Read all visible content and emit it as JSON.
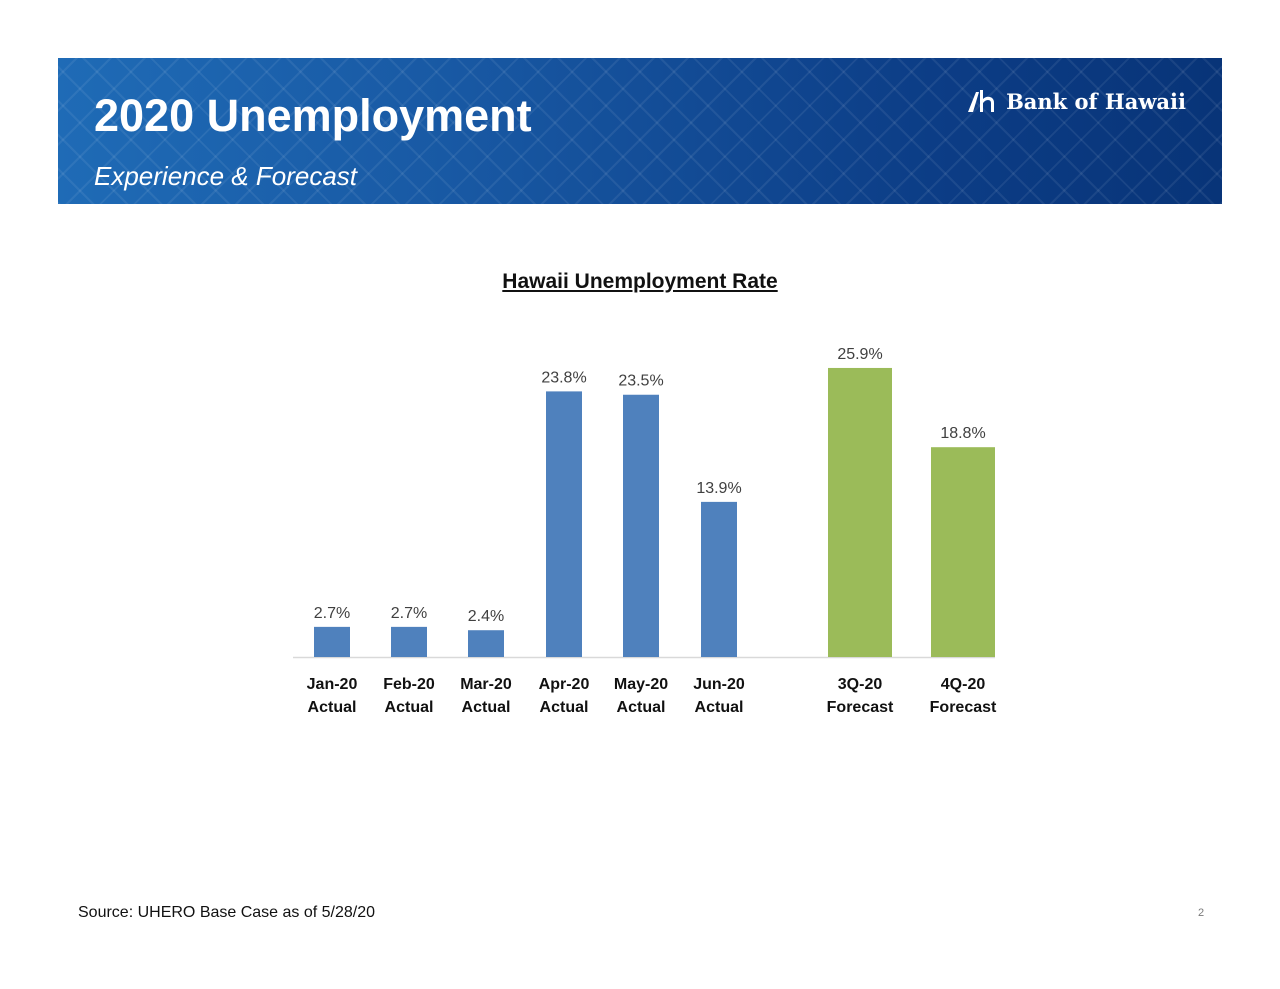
{
  "header": {
    "title": "2020 Unemployment",
    "subtitle": "Experience & Forecast",
    "logo_text": "Bank of Hawaii",
    "logo_icon": "bank-of-hawaii-logo-mark-icon",
    "banner_color": "#1858a3"
  },
  "footer": {
    "source": "Source: UHERO Base Case as of 5/28/20",
    "page_number": "2"
  },
  "chart_data": {
    "type": "bar",
    "title": "Hawaii Unemployment Rate",
    "xlabel": "",
    "ylabel": "",
    "ylim": [
      0,
      30
    ],
    "grid": false,
    "categories": [
      {
        "line1": "Jan-20",
        "line2": "Actual"
      },
      {
        "line1": "Feb-20",
        "line2": "Actual"
      },
      {
        "line1": "Mar-20",
        "line2": "Actual"
      },
      {
        "line1": "Apr-20",
        "line2": "Actual"
      },
      {
        "line1": "May-20",
        "line2": "Actual"
      },
      {
        "line1": "Jun-20",
        "line2": "Actual"
      },
      {
        "line1": "3Q-20",
        "line2": "Forecast"
      },
      {
        "line1": "4Q-20",
        "line2": "Forecast"
      }
    ],
    "values": [
      2.7,
      2.7,
      2.4,
      23.8,
      23.5,
      13.9,
      25.9,
      18.8
    ],
    "data_labels": [
      "2.7%",
      "2.7%",
      "2.4%",
      "23.8%",
      "23.5%",
      "13.9%",
      "25.9%",
      "18.8%"
    ],
    "kinds": [
      "actual",
      "actual",
      "actual",
      "actual",
      "actual",
      "actual",
      "forecast",
      "forecast"
    ],
    "colors": {
      "actual": "#4f81bd",
      "forecast": "#9bbb59"
    }
  }
}
